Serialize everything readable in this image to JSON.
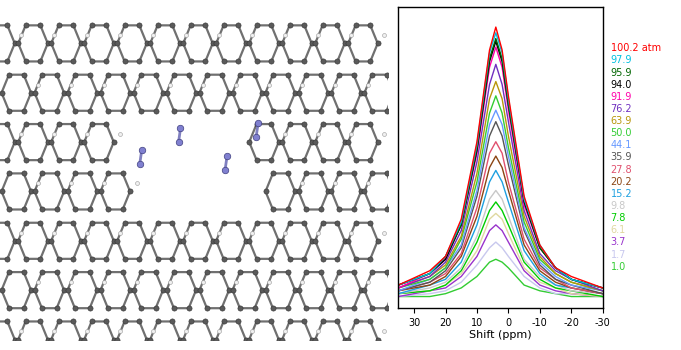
{
  "chart_data": {
    "type": "line",
    "x_label": "Shift (ppm)",
    "x": [
      35,
      25,
      20,
      15,
      10,
      6,
      4,
      2,
      0,
      -5,
      -10,
      -15,
      -20,
      -30
    ],
    "xlim": [
      35,
      -30
    ],
    "xticks": [
      30,
      20,
      10,
      0,
      -10,
      -20,
      -30
    ],
    "ylim": [
      0,
      1.05
    ],
    "tick_labels": "x",
    "legend": "right",
    "series": [
      {
        "name": "100.2 atm",
        "color": "#ff0000",
        "values": [
          0.08,
          0.13,
          0.18,
          0.31,
          0.58,
          0.9,
          0.98,
          0.9,
          0.74,
          0.39,
          0.22,
          0.14,
          0.11,
          0.07
        ]
      },
      {
        "name": "97.9",
        "color": "#00c0e0",
        "values": [
          0.08,
          0.12,
          0.18,
          0.3,
          0.57,
          0.89,
          0.96,
          0.89,
          0.73,
          0.38,
          0.22,
          0.14,
          0.1,
          0.07
        ]
      },
      {
        "name": "95.9",
        "color": "#006400",
        "values": [
          0.08,
          0.12,
          0.18,
          0.29,
          0.56,
          0.87,
          0.94,
          0.87,
          0.71,
          0.38,
          0.21,
          0.14,
          0.1,
          0.07
        ]
      },
      {
        "name": "94.0",
        "color": "#000000",
        "values": [
          0.08,
          0.12,
          0.17,
          0.29,
          0.55,
          0.86,
          0.93,
          0.86,
          0.71,
          0.37,
          0.21,
          0.14,
          0.1,
          0.07
        ]
      },
      {
        "name": "91.9",
        "color": "#ff00aa",
        "values": [
          0.07,
          0.12,
          0.17,
          0.29,
          0.54,
          0.84,
          0.91,
          0.84,
          0.69,
          0.36,
          0.21,
          0.14,
          0.1,
          0.07
        ]
      },
      {
        "name": "76.2",
        "color": "#7030c0",
        "values": [
          0.07,
          0.11,
          0.16,
          0.27,
          0.51,
          0.78,
          0.85,
          0.78,
          0.65,
          0.34,
          0.19,
          0.13,
          0.1,
          0.06
        ]
      },
      {
        "name": "63.9",
        "color": "#b8960b",
        "values": [
          0.07,
          0.11,
          0.15,
          0.25,
          0.47,
          0.73,
          0.79,
          0.73,
          0.6,
          0.32,
          0.18,
          0.12,
          0.09,
          0.06
        ]
      },
      {
        "name": "50.0",
        "color": "#33cc33",
        "values": [
          0.07,
          0.1,
          0.14,
          0.24,
          0.44,
          0.68,
          0.74,
          0.68,
          0.56,
          0.3,
          0.17,
          0.12,
          0.09,
          0.06
        ]
      },
      {
        "name": "44.1",
        "color": "#6699ff",
        "values": [
          0.06,
          0.1,
          0.14,
          0.22,
          0.41,
          0.64,
          0.69,
          0.64,
          0.53,
          0.28,
          0.16,
          0.11,
          0.08,
          0.06
        ]
      },
      {
        "name": "35.9",
        "color": "#555555",
        "values": [
          0.06,
          0.09,
          0.13,
          0.21,
          0.39,
          0.6,
          0.65,
          0.6,
          0.5,
          0.27,
          0.15,
          0.1,
          0.08,
          0.05
        ]
      },
      {
        "name": "27.8",
        "color": "#e0506e",
        "values": [
          0.06,
          0.09,
          0.12,
          0.19,
          0.35,
          0.54,
          0.58,
          0.54,
          0.44,
          0.24,
          0.14,
          0.1,
          0.07,
          0.05
        ]
      },
      {
        "name": "20.2",
        "color": "#8b4513",
        "values": [
          0.06,
          0.08,
          0.11,
          0.18,
          0.32,
          0.49,
          0.53,
          0.49,
          0.41,
          0.22,
          0.13,
          0.09,
          0.07,
          0.05
        ]
      },
      {
        "name": "15.2",
        "color": "#1ea0e0",
        "values": [
          0.05,
          0.08,
          0.1,
          0.16,
          0.29,
          0.44,
          0.48,
          0.44,
          0.37,
          0.2,
          0.12,
          0.08,
          0.07,
          0.05
        ]
      },
      {
        "name": "9.8",
        "color": "#c8c8c8",
        "values": [
          0.05,
          0.07,
          0.09,
          0.14,
          0.25,
          0.38,
          0.41,
          0.38,
          0.32,
          0.17,
          0.11,
          0.08,
          0.06,
          0.05
        ]
      },
      {
        "name": "7.8",
        "color": "#00cc00",
        "values": [
          0.05,
          0.06,
          0.08,
          0.13,
          0.23,
          0.34,
          0.37,
          0.34,
          0.29,
          0.16,
          0.1,
          0.07,
          0.06,
          0.04
        ]
      },
      {
        "name": "6.1",
        "color": "#e0d8a0",
        "values": [
          0.05,
          0.06,
          0.08,
          0.12,
          0.2,
          0.31,
          0.33,
          0.31,
          0.26,
          0.14,
          0.09,
          0.07,
          0.05,
          0.04
        ]
      },
      {
        "name": "3.7",
        "color": "#9933cc",
        "values": [
          0.04,
          0.06,
          0.07,
          0.11,
          0.18,
          0.27,
          0.29,
          0.27,
          0.23,
          0.13,
          0.08,
          0.06,
          0.05,
          0.04
        ]
      },
      {
        "name": "1.7",
        "color": "#c8c8ee",
        "values": [
          0.04,
          0.05,
          0.06,
          0.09,
          0.15,
          0.21,
          0.23,
          0.21,
          0.18,
          0.11,
          0.07,
          0.05,
          0.05,
          0.04
        ]
      },
      {
        "name": "1.0",
        "color": "#33cc33",
        "values": [
          0.04,
          0.04,
          0.05,
          0.07,
          0.11,
          0.16,
          0.17,
          0.16,
          0.14,
          0.08,
          0.06,
          0.05,
          0.04,
          0.04
        ]
      }
    ]
  }
}
